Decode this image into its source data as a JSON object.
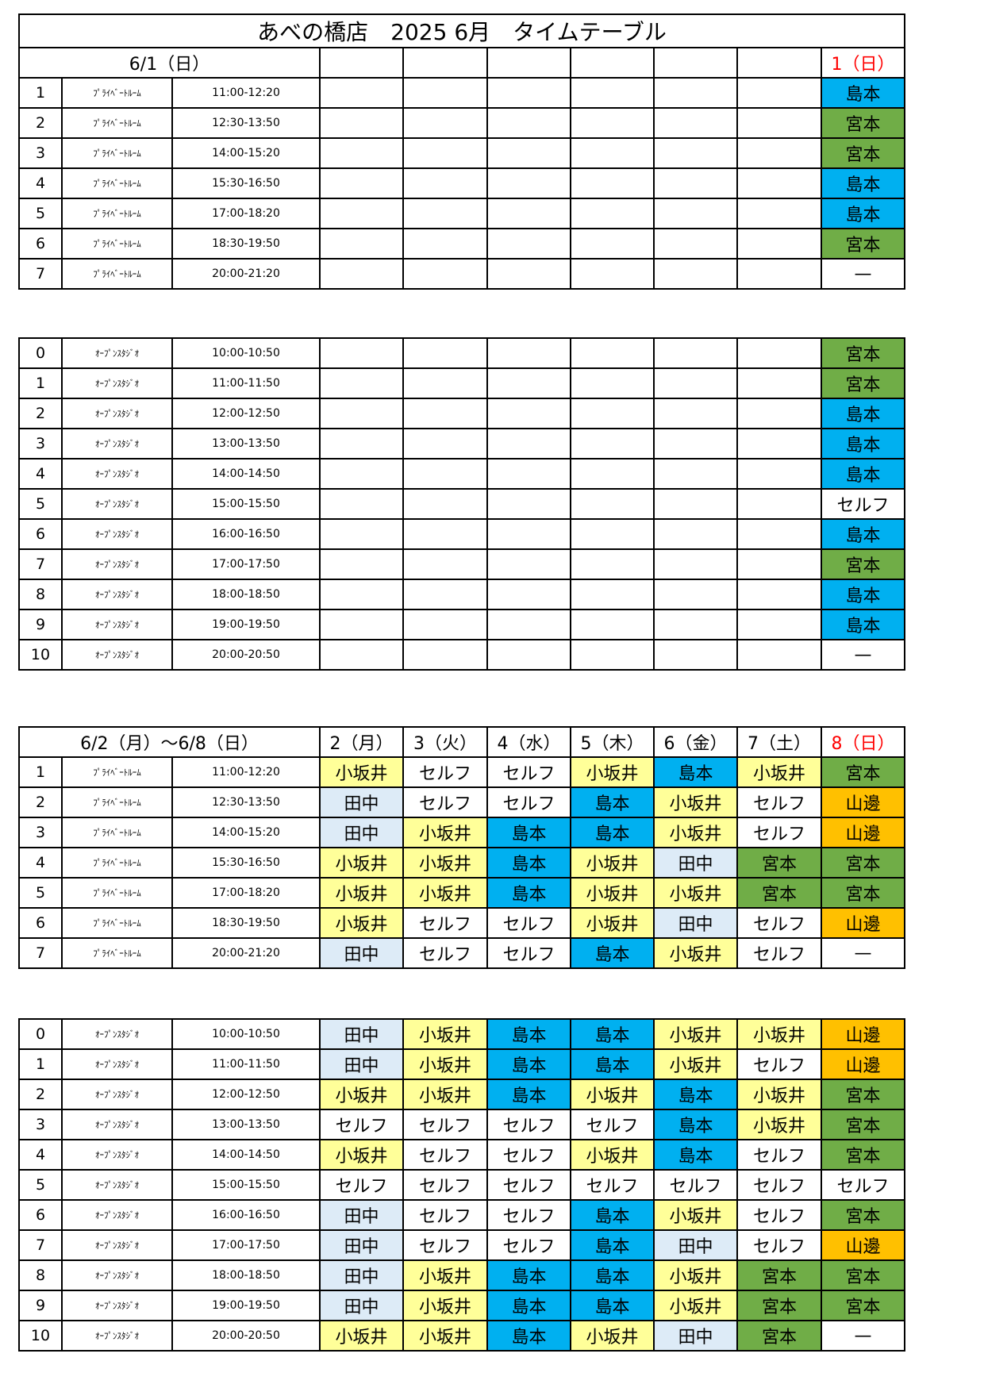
{
  "title": "あべの橋店　2025 6月　タイムテーブル",
  "staff_colors": {
    "島本": "#00b0f0",
    "宮本": "#70ad47",
    "小坂井": "#ffff99",
    "田中": "#ddebf7",
    "山邊": "#ffc000",
    "セルフ": "#ffffff",
    "—": "#ffffff",
    "": "#ffffff"
  },
  "sunday_color": "#ff0000",
  "weeks": [
    {
      "range_label": "6/1（日）",
      "days": [
        "",
        "",
        "",
        "",
        "",
        "",
        "1（日）"
      ],
      "private": [
        {
          "no": "1",
          "room": "ﾌﾟﾗｲﾍﾞｰﾄﾙｰﾑ",
          "time": "11:00-12:20",
          "cells": [
            "",
            "",
            "",
            "",
            "",
            "",
            "島本"
          ]
        },
        {
          "no": "2",
          "room": "ﾌﾟﾗｲﾍﾞｰﾄﾙｰﾑ",
          "time": "12:30-13:50",
          "cells": [
            "",
            "",
            "",
            "",
            "",
            "",
            "宮本"
          ]
        },
        {
          "no": "3",
          "room": "ﾌﾟﾗｲﾍﾞｰﾄﾙｰﾑ",
          "time": "14:00-15:20",
          "cells": [
            "",
            "",
            "",
            "",
            "",
            "",
            "宮本"
          ]
        },
        {
          "no": "4",
          "room": "ﾌﾟﾗｲﾍﾞｰﾄﾙｰﾑ",
          "time": "15:30-16:50",
          "cells": [
            "",
            "",
            "",
            "",
            "",
            "",
            "島本"
          ]
        },
        {
          "no": "5",
          "room": "ﾌﾟﾗｲﾍﾞｰﾄﾙｰﾑ",
          "time": "17:00-18:20",
          "cells": [
            "",
            "",
            "",
            "",
            "",
            "",
            "島本"
          ]
        },
        {
          "no": "6",
          "room": "ﾌﾟﾗｲﾍﾞｰﾄﾙｰﾑ",
          "time": "18:30-19:50",
          "cells": [
            "",
            "",
            "",
            "",
            "",
            "",
            "宮本"
          ]
        },
        {
          "no": "7",
          "room": "ﾌﾟﾗｲﾍﾞｰﾄﾙｰﾑ",
          "time": "20:00-21:20",
          "cells": [
            "",
            "",
            "",
            "",
            "",
            "",
            "—"
          ]
        }
      ],
      "studio": [
        {
          "no": "0",
          "room": "ｵｰﾌﾟﾝｽﾀｼﾞｵ",
          "time": "10:00-10:50",
          "cells": [
            "",
            "",
            "",
            "",
            "",
            "",
            "宮本"
          ]
        },
        {
          "no": "1",
          "room": "ｵｰﾌﾟﾝｽﾀｼﾞｵ",
          "time": "11:00-11:50",
          "cells": [
            "",
            "",
            "",
            "",
            "",
            "",
            "宮本"
          ]
        },
        {
          "no": "2",
          "room": "ｵｰﾌﾟﾝｽﾀｼﾞｵ",
          "time": "12:00-12:50",
          "cells": [
            "",
            "",
            "",
            "",
            "",
            "",
            "島本"
          ]
        },
        {
          "no": "3",
          "room": "ｵｰﾌﾟﾝｽﾀｼﾞｵ",
          "time": "13:00-13:50",
          "cells": [
            "",
            "",
            "",
            "",
            "",
            "",
            "島本"
          ]
        },
        {
          "no": "4",
          "room": "ｵｰﾌﾟﾝｽﾀｼﾞｵ",
          "time": "14:00-14:50",
          "cells": [
            "",
            "",
            "",
            "",
            "",
            "",
            "島本"
          ]
        },
        {
          "no": "5",
          "room": "ｵｰﾌﾟﾝｽﾀｼﾞｵ",
          "time": "15:00-15:50",
          "cells": [
            "",
            "",
            "",
            "",
            "",
            "",
            "セルフ"
          ]
        },
        {
          "no": "6",
          "room": "ｵｰﾌﾟﾝｽﾀｼﾞｵ",
          "time": "16:00-16:50",
          "cells": [
            "",
            "",
            "",
            "",
            "",
            "",
            "島本"
          ]
        },
        {
          "no": "7",
          "room": "ｵｰﾌﾟﾝｽﾀｼﾞｵ",
          "time": "17:00-17:50",
          "cells": [
            "",
            "",
            "",
            "",
            "",
            "",
            "宮本"
          ]
        },
        {
          "no": "8",
          "room": "ｵｰﾌﾟﾝｽﾀｼﾞｵ",
          "time": "18:00-18:50",
          "cells": [
            "",
            "",
            "",
            "",
            "",
            "",
            "島本"
          ]
        },
        {
          "no": "9",
          "room": "ｵｰﾌﾟﾝｽﾀｼﾞｵ",
          "time": "19:00-19:50",
          "cells": [
            "",
            "",
            "",
            "",
            "",
            "",
            "島本"
          ]
        },
        {
          "no": "10",
          "room": "ｵｰﾌﾟﾝｽﾀｼﾞｵ",
          "time": "20:00-20:50",
          "cells": [
            "",
            "",
            "",
            "",
            "",
            "",
            "—"
          ]
        }
      ]
    },
    {
      "range_label": "6/2（月）～6/8（日）",
      "days": [
        "2（月）",
        "3（火）",
        "4（水）",
        "5（木）",
        "6（金）",
        "7（土）",
        "8（日）"
      ],
      "private": [
        {
          "no": "1",
          "room": "ﾌﾟﾗｲﾍﾞｰﾄﾙｰﾑ",
          "time": "11:00-12:20",
          "cells": [
            "小坂井",
            "セルフ",
            "セルフ",
            "小坂井",
            "島本",
            "小坂井",
            "宮本"
          ]
        },
        {
          "no": "2",
          "room": "ﾌﾟﾗｲﾍﾞｰﾄﾙｰﾑ",
          "time": "12:30-13:50",
          "cells": [
            "田中",
            "セルフ",
            "セルフ",
            "島本",
            "小坂井",
            "セルフ",
            "山邊"
          ]
        },
        {
          "no": "3",
          "room": "ﾌﾟﾗｲﾍﾞｰﾄﾙｰﾑ",
          "time": "14:00-15:20",
          "cells": [
            "田中",
            "小坂井",
            "島本",
            "島本",
            "小坂井",
            "セルフ",
            "山邊"
          ]
        },
        {
          "no": "4",
          "room": "ﾌﾟﾗｲﾍﾞｰﾄﾙｰﾑ",
          "time": "15:30-16:50",
          "cells": [
            "小坂井",
            "小坂井",
            "島本",
            "小坂井",
            "田中",
            "宮本",
            "宮本"
          ]
        },
        {
          "no": "5",
          "room": "ﾌﾟﾗｲﾍﾞｰﾄﾙｰﾑ",
          "time": "17:00-18:20",
          "cells": [
            "小坂井",
            "小坂井",
            "島本",
            "小坂井",
            "小坂井",
            "宮本",
            "宮本"
          ]
        },
        {
          "no": "6",
          "room": "ﾌﾟﾗｲﾍﾞｰﾄﾙｰﾑ",
          "time": "18:30-19:50",
          "cells": [
            "小坂井",
            "セルフ",
            "セルフ",
            "小坂井",
            "田中",
            "セルフ",
            "山邊"
          ]
        },
        {
          "no": "7",
          "room": "ﾌﾟﾗｲﾍﾞｰﾄﾙｰﾑ",
          "time": "20:00-21:20",
          "cells": [
            "田中",
            "セルフ",
            "セルフ",
            "島本",
            "小坂井",
            "セルフ",
            "—"
          ]
        }
      ],
      "studio": [
        {
          "no": "0",
          "room": "ｵｰﾌﾟﾝｽﾀｼﾞｵ",
          "time": "10:00-10:50",
          "cells": [
            "田中",
            "小坂井",
            "島本",
            "島本",
            "小坂井",
            "小坂井",
            "山邊"
          ]
        },
        {
          "no": "1",
          "room": "ｵｰﾌﾟﾝｽﾀｼﾞｵ",
          "time": "11:00-11:50",
          "cells": [
            "田中",
            "小坂井",
            "島本",
            "島本",
            "小坂井",
            "セルフ",
            "山邊"
          ]
        },
        {
          "no": "2",
          "room": "ｵｰﾌﾟﾝｽﾀｼﾞｵ",
          "time": "12:00-12:50",
          "cells": [
            "小坂井",
            "小坂井",
            "島本",
            "小坂井",
            "島本",
            "小坂井",
            "宮本"
          ]
        },
        {
          "no": "3",
          "room": "ｵｰﾌﾟﾝｽﾀｼﾞｵ",
          "time": "13:00-13:50",
          "cells": [
            "セルフ",
            "セルフ",
            "セルフ",
            "セルフ",
            "島本",
            "小坂井",
            "宮本"
          ]
        },
        {
          "no": "4",
          "room": "ｵｰﾌﾟﾝｽﾀｼﾞｵ",
          "time": "14:00-14:50",
          "cells": [
            "小坂井",
            "セルフ",
            "セルフ",
            "小坂井",
            "島本",
            "セルフ",
            "宮本"
          ]
        },
        {
          "no": "5",
          "room": "ｵｰﾌﾟﾝｽﾀｼﾞｵ",
          "time": "15:00-15:50",
          "cells": [
            "セルフ",
            "セルフ",
            "セルフ",
            "セルフ",
            "セルフ",
            "セルフ",
            "セルフ"
          ]
        },
        {
          "no": "6",
          "room": "ｵｰﾌﾟﾝｽﾀｼﾞｵ",
          "time": "16:00-16:50",
          "cells": [
            "田中",
            "セルフ",
            "セルフ",
            "島本",
            "小坂井",
            "セルフ",
            "宮本"
          ]
        },
        {
          "no": "7",
          "room": "ｵｰﾌﾟﾝｽﾀｼﾞｵ",
          "time": "17:00-17:50",
          "cells": [
            "田中",
            "セルフ",
            "セルフ",
            "島本",
            "田中",
            "セルフ",
            "山邊"
          ]
        },
        {
          "no": "8",
          "room": "ｵｰﾌﾟﾝｽﾀｼﾞｵ",
          "time": "18:00-18:50",
          "cells": [
            "田中",
            "小坂井",
            "島本",
            "島本",
            "小坂井",
            "宮本",
            "宮本"
          ]
        },
        {
          "no": "9",
          "room": "ｵｰﾌﾟﾝｽﾀｼﾞｵ",
          "time": "19:00-19:50",
          "cells": [
            "田中",
            "小坂井",
            "島本",
            "島本",
            "小坂井",
            "宮本",
            "宮本"
          ]
        },
        {
          "no": "10",
          "room": "ｵｰﾌﾟﾝｽﾀｼﾞｵ",
          "time": "20:00-20:50",
          "cells": [
            "小坂井",
            "小坂井",
            "島本",
            "小坂井",
            "田中",
            "宮本",
            "—"
          ]
        }
      ]
    }
  ]
}
